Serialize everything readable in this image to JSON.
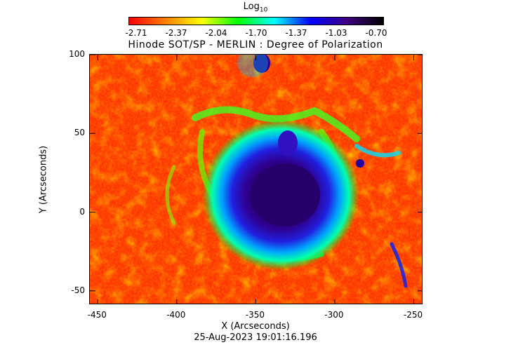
{
  "colorbar": {
    "title_main": "Log",
    "title_sub": "10",
    "ticks": [
      "-2.71",
      "-2.37",
      "-2.04",
      "-1.70",
      "-1.37",
      "-1.03",
      "-0.70"
    ],
    "colors": [
      "#ff0000",
      "#ff8000",
      "#ffff00",
      "#00ff00",
      "#00ffff",
      "#0000ff",
      "#400080",
      "#000000"
    ]
  },
  "plot": {
    "title": "Hinode SOT/SP - MERLIN : Degree of Polarization",
    "xlabel": "X (Arcseconds)",
    "ylabel": "Y (Arcseconds)",
    "x_ticks": [
      "-450",
      "-400",
      "-350",
      "-300",
      "-250"
    ],
    "y_ticks": [
      "100",
      "50",
      "0",
      "-50"
    ],
    "xlim": [
      -455,
      -244
    ],
    "ylim": [
      -59,
      100
    ],
    "description_colors": {
      "quiet": "#ff3000",
      "network": "#00ff00",
      "penumbra": "#00c0ff",
      "umbra": "#200060"
    }
  },
  "timestamp": "25-Aug-2023 19:01:16.196"
}
